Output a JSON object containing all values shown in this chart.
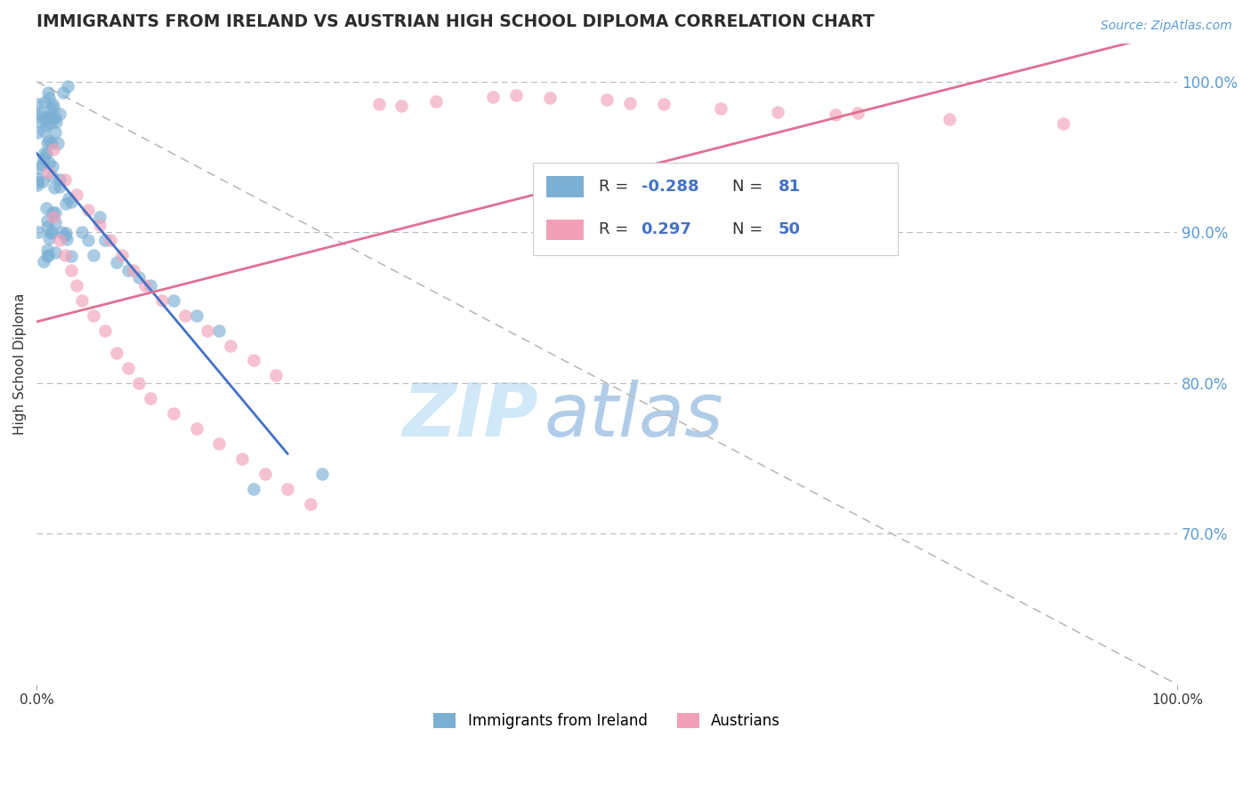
{
  "title": "IMMIGRANTS FROM IRELAND VS AUSTRIAN HIGH SCHOOL DIPLOMA CORRELATION CHART",
  "source": "Source: ZipAtlas.com",
  "ylabel": "High School Diploma",
  "y_axis_right_labels": [
    "100.0%",
    "90.0%",
    "80.0%",
    "70.0%"
  ],
  "y_axis_right_values": [
    1.0,
    0.9,
    0.8,
    0.7
  ],
  "legend1_label": "Immigrants from Ireland",
  "legend2_label": "Austrians",
  "r1": -0.288,
  "n1": 81,
  "r2": 0.297,
  "n2": 50,
  "color1": "#7bafd4",
  "color2": "#f2a0b8",
  "line1_color": "#4472c4",
  "line2_color": "#e07090",
  "diagonal_color": "#bbbbbb",
  "background_color": "#ffffff",
  "xlim": [
    0.0,
    1.0
  ],
  "ylim": [
    0.6,
    1.025
  ]
}
